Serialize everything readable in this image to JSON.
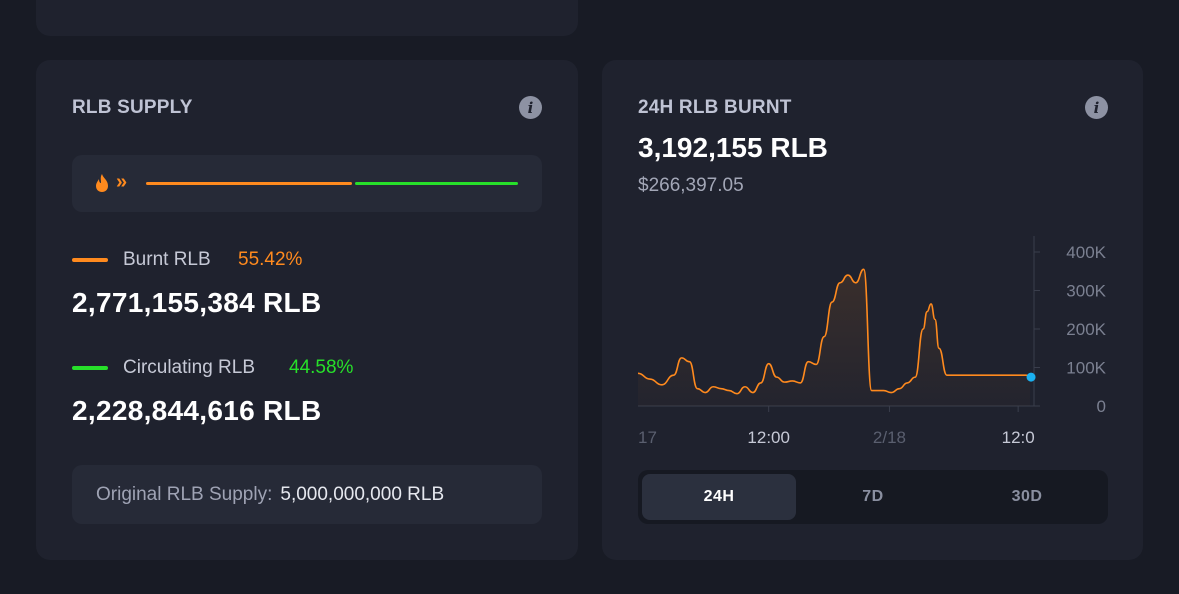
{
  "supply_card": {
    "title": "RLB SUPPLY",
    "info_icon": "info-icon",
    "bar": {
      "burnt_fraction": 0.5542,
      "circulating_fraction": 0.4458,
      "burnt_color": "#ff8a1e",
      "circulating_color": "#27e02a",
      "icons": [
        "fire-icon",
        "double-chevron-right-icon"
      ]
    },
    "burnt": {
      "label": "Burnt RLB",
      "percent": "55.42%",
      "amount": "2,771,155,384 RLB",
      "color": "#ff8a1e"
    },
    "circulating": {
      "label": "Circulating RLB",
      "percent": "44.58%",
      "amount": "2,228,844,616 RLB",
      "color": "#27e02a"
    },
    "original": {
      "label": "Original RLB Supply:",
      "value": "5,000,000,000 RLB"
    }
  },
  "burnt_card": {
    "title": "24H RLB BURNT",
    "info_icon": "info-icon",
    "amount": "3,192,155 RLB",
    "usd": "$266,397.05",
    "tabs": [
      {
        "label": "24H",
        "active": true
      },
      {
        "label": "7D",
        "active": false
      },
      {
        "label": "30D",
        "active": false
      }
    ]
  },
  "chart_data": {
    "type": "area",
    "x_tick_labels": [
      "17",
      "12:00",
      "2/18",
      "12:0"
    ],
    "y_tick_labels": [
      "400K",
      "300K",
      "200K",
      "100K",
      "0"
    ],
    "ylim": [
      0,
      400000
    ],
    "line_color": "#ff8a1e",
    "marker_color": "#1ab0f0",
    "series": [
      {
        "x": [
          0,
          3,
          6,
          9,
          11,
          13,
          15,
          17,
          19,
          21,
          23,
          25,
          27,
          29,
          31,
          33,
          35,
          37,
          39,
          41,
          43,
          45,
          47,
          49,
          51,
          53,
          55,
          57,
          59,
          60,
          62,
          64,
          66,
          68,
          70,
          72,
          73,
          74,
          75,
          76,
          78,
          80,
          82,
          84,
          86,
          88,
          89,
          90,
          91,
          92,
          93,
          94,
          96,
          97,
          98,
          99
        ],
        "values": [
          85000,
          70000,
          55000,
          80000,
          125000,
          115000,
          45000,
          35000,
          50000,
          45000,
          40000,
          32000,
          50000,
          35000,
          60000,
          110000,
          75000,
          62000,
          65000,
          60000,
          115000,
          108000,
          180000,
          270000,
          320000,
          340000,
          320000,
          355000,
          40000,
          40000,
          40000,
          35000,
          45000,
          60000,
          75000,
          200000,
          245000,
          265000,
          225000,
          150000,
          80000,
          80000,
          80000,
          80000,
          80000,
          80000,
          80000,
          80000,
          80000,
          80000,
          80000,
          80000,
          80000,
          80000,
          80000,
          75000
        ]
      }
    ]
  }
}
